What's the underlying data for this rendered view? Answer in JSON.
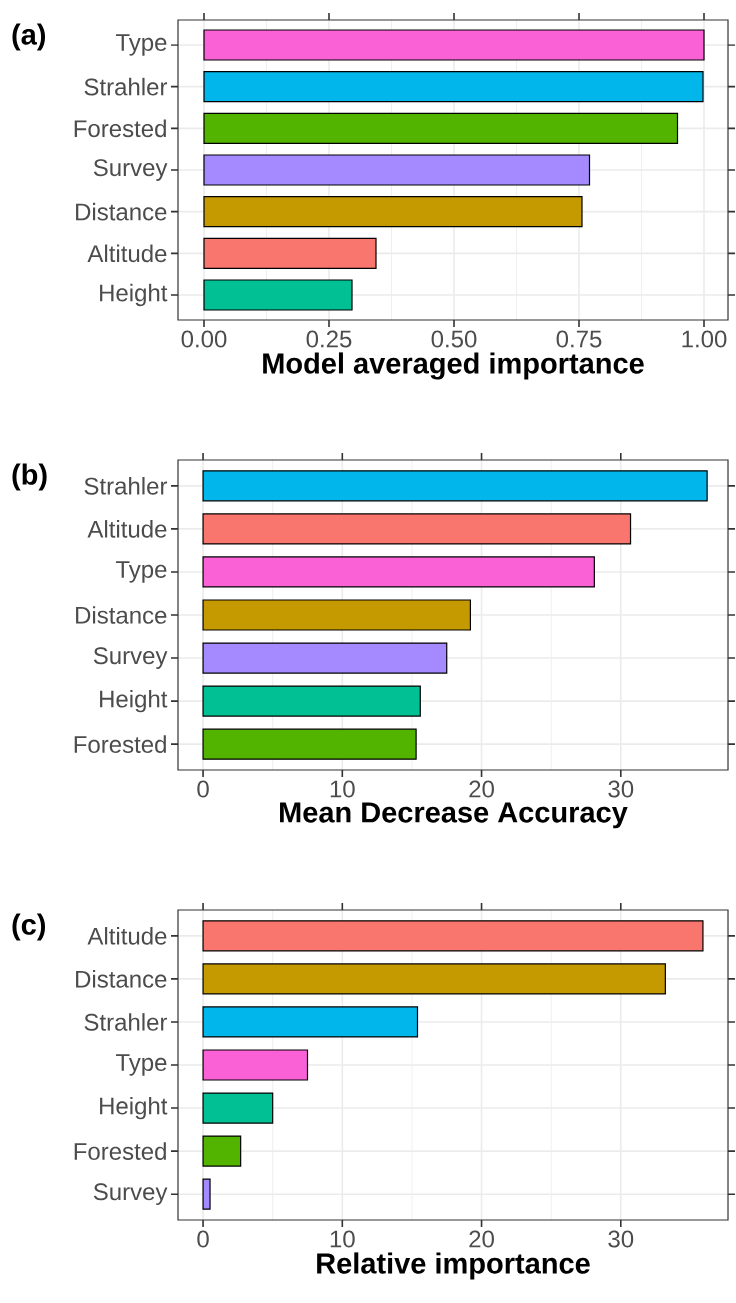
{
  "chart_data": [
    {
      "type": "bar",
      "orientation": "horizontal",
      "annotations": [
        "(a)"
      ],
      "xlabel": "Model averaged importance",
      "categories": [
        "Type",
        "Strahler",
        "Forested",
        "Survey",
        "Distance",
        "Altitude",
        "Height"
      ],
      "values": [
        1.0,
        0.998,
        0.947,
        0.771,
        0.756,
        0.344,
        0.296
      ],
      "colors": [
        "#fb61d7",
        "#00b6eb",
        "#53b400",
        "#a58aff",
        "#c49a00",
        "#f8766d",
        "#00c094"
      ],
      "xlim": [
        -0.052,
        1.048
      ],
      "xticks": [
        {
          "value": 0,
          "label": "0.00"
        },
        {
          "value": 0.25,
          "label": "0.25"
        },
        {
          "value": 0.5,
          "label": "0.50"
        },
        {
          "value": 0.75,
          "label": "0.75"
        },
        {
          "value": 1,
          "label": "1.00"
        }
      ],
      "grid": true
    },
    {
      "type": "bar",
      "orientation": "horizontal",
      "annotations": [
        "(b)"
      ],
      "xlabel": "Mean Decrease Accuracy",
      "categories": [
        "Strahler",
        "Altitude",
        "Type",
        "Distance",
        "Survey",
        "Height",
        "Forested"
      ],
      "values": [
        36.2,
        30.7,
        28.1,
        19.2,
        17.5,
        15.6,
        15.3
      ],
      "colors": [
        "#00b6eb",
        "#f8766d",
        "#fb61d7",
        "#c49a00",
        "#a58aff",
        "#00c094",
        "#53b400"
      ],
      "xlim": [
        -1.8,
        37.7
      ],
      "xticks": [
        0,
        10,
        20,
        30
      ],
      "grid": true
    },
    {
      "type": "bar",
      "orientation": "horizontal",
      "annotations": [
        "(c)"
      ],
      "xlabel": "Relative importance",
      "categories": [
        "Altitude",
        "Distance",
        "Strahler",
        "Type",
        "Height",
        "Forested",
        "Survey"
      ],
      "values": [
        35.9,
        33.2,
        15.4,
        7.5,
        5.0,
        2.7,
        0.5
      ],
      "colors": [
        "#f8766d",
        "#c49a00",
        "#00b6eb",
        "#fb61d7",
        "#00c094",
        "#53b400",
        "#a58aff"
      ],
      "xlim": [
        -1.8,
        37.7
      ],
      "xticks": [
        0,
        10,
        20,
        30
      ],
      "grid": true
    }
  ]
}
